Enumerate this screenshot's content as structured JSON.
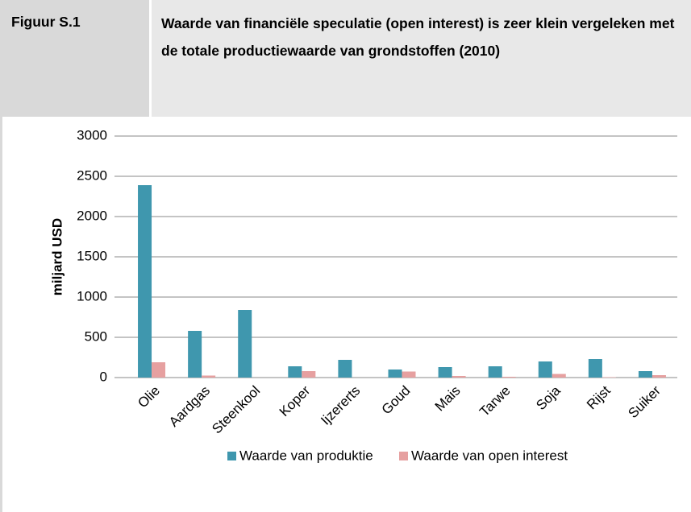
{
  "chart_data": {
    "type": "bar",
    "figure_label": "Figuur S.1",
    "title": "Waarde van financiële speculatie (open interest) is zeer klein vergeleken met de totale productiewaarde van grondstoffen (2010)",
    "ylabel": "miljard USD",
    "categories": [
      "Olie",
      "Aardgas",
      "Steenkool",
      "Koper",
      "Ijzererts",
      "Goud",
      "Mais",
      "Tarwe",
      "Soja",
      "Rijst",
      "Suiker"
    ],
    "series": [
      {
        "name": "Waarde van produktie",
        "color": "#3f97ae",
        "values": [
          2390,
          580,
          840,
          140,
          220,
          100,
          130,
          140,
          200,
          230,
          80
        ]
      },
      {
        "name": "Waarde van open interest",
        "color": "#e6a0a0",
        "values": [
          190,
          25,
          0,
          80,
          0,
          75,
          20,
          10,
          45,
          5,
          30
        ]
      }
    ],
    "ylim": [
      0,
      3000
    ],
    "yticks": [
      0,
      500,
      1000,
      1500,
      2000,
      2500,
      3000
    ],
    "grid": true,
    "legend": "bottom"
  }
}
